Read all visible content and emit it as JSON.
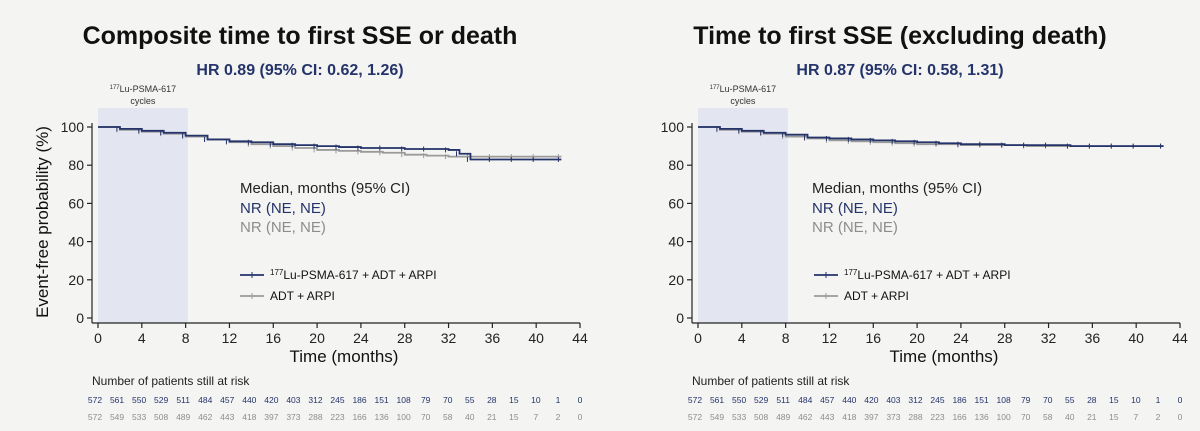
{
  "chart_data": [
    {
      "type": "line",
      "title": "Composite time to first SSE or death",
      "subtitle": "HR 0.89 (95% CI: 0.62, 1.26)",
      "xlabel": "Time (months)",
      "ylabel": "Event-free probability (%)",
      "xlim": [
        0,
        44
      ],
      "ylim": [
        0,
        100
      ],
      "xticks": [
        "0",
        "4",
        "8",
        "12",
        "16",
        "20",
        "24",
        "28",
        "32",
        "36",
        "40",
        "44"
      ],
      "yticks": [
        "0",
        "20",
        "40",
        "60",
        "80",
        "100"
      ],
      "shaded_region": {
        "x": [
          0,
          8.2
        ],
        "label_sup": "177",
        "label_rest": "Lu-PSMA-617",
        "label_line2": "cycles"
      },
      "median": {
        "header": "Median, months (95% CI)",
        "lines": [
          "NR (NE, NE)",
          "NR (NE, NE)"
        ]
      },
      "legend": [
        {
          "sup": "177",
          "text": "Lu-PSMA-617 + ADT + ARPI",
          "color": "#24336a"
        },
        {
          "sup": "",
          "text": "ADT + ARPI",
          "color": "#9a9a9a"
        }
      ],
      "series": [
        {
          "name": "177Lu-PSMA-617 + ADT + ARPI",
          "color": "#24336a",
          "x": [
            0,
            2,
            4,
            6,
            8,
            10,
            12,
            14,
            16,
            18,
            20,
            22,
            24,
            26,
            28,
            30,
            32,
            33,
            34,
            36,
            38,
            40,
            42.3
          ],
          "y": [
            100,
            99,
            98,
            97,
            95.5,
            93.5,
            92.5,
            92,
            91,
            90.5,
            90,
            89.5,
            89,
            89,
            88.5,
            88.5,
            88,
            86,
            83,
            83,
            83,
            83,
            83
          ]
        },
        {
          "name": "ADT + ARPI",
          "color": "#9a9a9a",
          "x": [
            0,
            2,
            4,
            6,
            8,
            10,
            12,
            14,
            16,
            18,
            20,
            22,
            24,
            26,
            28,
            30,
            32,
            34,
            36,
            38,
            40,
            42.3
          ],
          "y": [
            100,
            98.5,
            97.5,
            96.5,
            95,
            93.5,
            92,
            91,
            90,
            89,
            88,
            87.5,
            87,
            86.5,
            85.5,
            85,
            84.5,
            84.5,
            84.5,
            84.5,
            84.5,
            84.5
          ]
        }
      ],
      "risk_table": {
        "header": "Number of patients still at risk",
        "rows": [
          {
            "values": [
              "572",
              "561",
              "550",
              "529",
              "511",
              "484",
              "457",
              "440",
              "420",
              "403",
              "312",
              "245",
              "186",
              "151",
              "108",
              "79",
              "70",
              "55",
              "28",
              "15",
              "10",
              "1",
              "0"
            ]
          },
          {
            "values": [
              "572",
              "549",
              "533",
              "508",
              "489",
              "462",
              "443",
              "418",
              "397",
              "373",
              "288",
              "223",
              "166",
              "136",
              "100",
              "70",
              "58",
              "40",
              "21",
              "15",
              "7",
              "2",
              "0"
            ]
          }
        ]
      }
    },
    {
      "type": "line",
      "title": "Time to first SSE (excluding death)",
      "subtitle": "HR 0.87 (95% CI: 0.58, 1.31)",
      "xlabel": "Time (months)",
      "ylabel": "",
      "xlim": [
        0,
        44
      ],
      "ylim": [
        0,
        100
      ],
      "xticks": [
        "0",
        "4",
        "8",
        "12",
        "16",
        "20",
        "24",
        "28",
        "32",
        "36",
        "40",
        "44"
      ],
      "yticks": [
        "0",
        "20",
        "40",
        "60",
        "80",
        "100"
      ],
      "shaded_region": {
        "x": [
          0,
          8.2
        ],
        "label_sup": "177",
        "label_rest": "Lu-PSMA-617",
        "label_line2": "cycles"
      },
      "median": {
        "header": "Median, months (95% CI)",
        "lines": [
          "NR (NE, NE)",
          "NR (NE, NE)"
        ]
      },
      "legend": [
        {
          "sup": "177",
          "text": "Lu-PSMA-617 + ADT + ARPI",
          "color": "#24336a"
        },
        {
          "sup": "",
          "text": "ADT + ARPI",
          "color": "#9a9a9a"
        }
      ],
      "series": [
        {
          "name": "177Lu-PSMA-617 + ADT + ARPI",
          "color": "#24336a",
          "x": [
            0,
            2,
            4,
            6,
            8,
            10,
            12,
            14,
            16,
            18,
            20,
            22,
            24,
            26,
            28,
            30,
            32,
            34,
            36,
            38,
            40,
            42.5
          ],
          "y": [
            100,
            99,
            98,
            97,
            96,
            94.5,
            94,
            93.5,
            93,
            92.5,
            92,
            91.5,
            91,
            91,
            90.5,
            90.5,
            90.5,
            90,
            90,
            90,
            90,
            90
          ]
        },
        {
          "name": "ADT + ARPI",
          "color": "#9a9a9a",
          "x": [
            0,
            2,
            4,
            6,
            8,
            10,
            12,
            14,
            16,
            18,
            20,
            22,
            24,
            26,
            28,
            30,
            32,
            34,
            36,
            38,
            40,
            42.5
          ],
          "y": [
            100,
            98.5,
            97.5,
            96.5,
            95,
            94,
            93,
            92.5,
            92,
            91.5,
            91,
            91,
            90.5,
            90.5,
            90.5,
            90,
            90,
            90,
            90,
            90,
            90,
            90
          ]
        }
      ],
      "risk_table": {
        "header": "Number of patients still at risk",
        "rows": [
          {
            "values": [
              "572",
              "561",
              "550",
              "529",
              "511",
              "484",
              "457",
              "440",
              "420",
              "403",
              "312",
              "245",
              "186",
              "151",
              "108",
              "79",
              "70",
              "55",
              "28",
              "15",
              "10",
              "1",
              "0"
            ]
          },
          {
            "values": [
              "572",
              "549",
              "533",
              "508",
              "489",
              "462",
              "443",
              "418",
              "397",
              "373",
              "288",
              "223",
              "166",
              "136",
              "100",
              "70",
              "58",
              "40",
              "21",
              "15",
              "7",
              "2",
              "0"
            ]
          }
        ]
      }
    }
  ]
}
